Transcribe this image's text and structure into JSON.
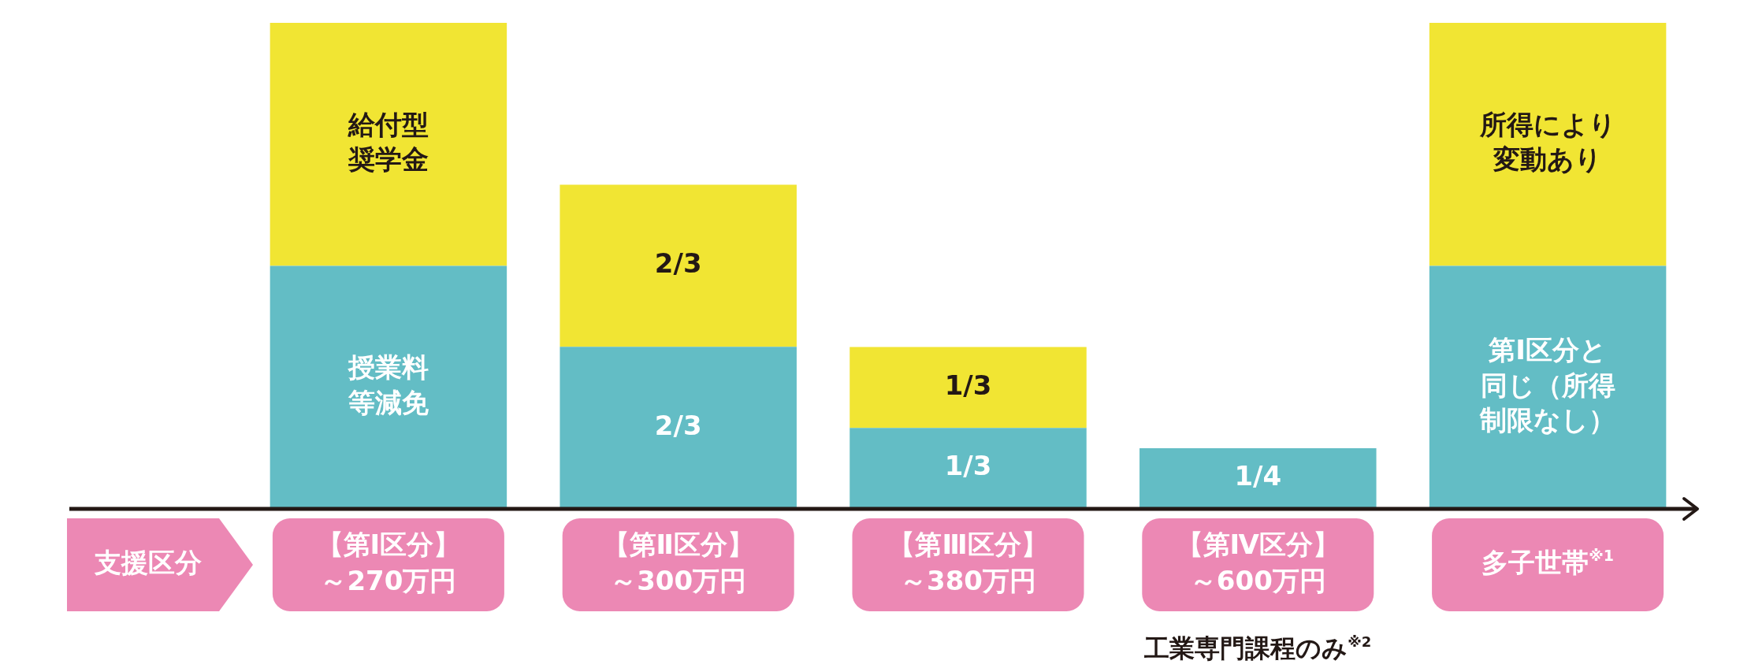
{
  "chart_data": {
    "type": "bar",
    "stacked": true,
    "xlabel": "支援区分",
    "categories": [
      "【第Ⅰ区分】～270万円",
      "【第Ⅱ区分】～300万円",
      "【第Ⅲ区分】～380万円",
      "【第Ⅳ区分】～600万円",
      "多子世帯$^{※1}$"
    ],
    "series": [
      {
        "color": "#63bdc5",
        "values": [
          1,
          0.667,
          0.333,
          0.25,
          1
        ],
        "value_labels": [
          "授業料等減免",
          "2/3",
          "1/3",
          "1/4",
          "第Ⅰ区分と同じ（所得制限なし）"
        ]
      },
      {
        "color": "#f1e533",
        "values": [
          1,
          0.667,
          0.333,
          null,
          1
        ],
        "value_labels": [
          "給付型奨学金",
          "2/3",
          "1/3",
          null,
          "所得により変動あり"
        ]
      }
    ],
    "annotations": [
      "工業専門課程のみ$^{※2}$"
    ]
  }
}
